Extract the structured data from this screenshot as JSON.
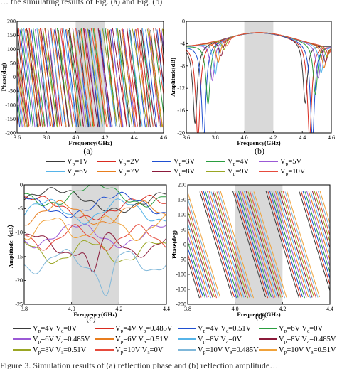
{
  "header_text": "… the  simulating  results  of  Fig. (a) and Fig. (b)",
  "footer_text": "Figure 3. Simulation results of (a) reflection phase and (b) reflection amplitude…",
  "chart_data": [
    {
      "type": "line",
      "panel": "(a)",
      "xlabel": "Frequency(GHz)",
      "ylabel": "Phase(deg)",
      "xlim": [
        3.6,
        4.6
      ],
      "ylim": [
        -200,
        200
      ],
      "xticks": [
        "3.6",
        "3.8",
        "4.0",
        "4.2",
        "4.4",
        "4.6"
      ],
      "yticks": [
        "200",
        "150",
        "100",
        "50",
        "0",
        "-50",
        "-100",
        "-150",
        "-200"
      ],
      "shaded_band": [
        4.0,
        4.2
      ],
      "grid": false,
      "series": [
        {
          "name": "Vp=1V",
          "color": "#3a3a3a",
          "period": 0.07,
          "offset": 0.0
        },
        {
          "name": "Vp=2V",
          "color": "#d92b1f",
          "period": 0.074,
          "offset": 0.009
        },
        {
          "name": "Vp=3V",
          "color": "#1f4fd1",
          "period": 0.078,
          "offset": 0.018
        },
        {
          "name": "Vp=4V",
          "color": "#2a9d3f",
          "period": 0.082,
          "offset": 0.027
        },
        {
          "name": "Vp=5V",
          "color": "#9b59d6",
          "period": 0.086,
          "offset": 0.036
        },
        {
          "name": "Vp=6V",
          "color": "#56b4e9",
          "period": 0.09,
          "offset": 0.045
        },
        {
          "name": "Vp=7V",
          "color": "#e87d1e",
          "period": 0.094,
          "offset": 0.054
        },
        {
          "name": "Vp=8V",
          "color": "#8b1a3a",
          "period": 0.098,
          "offset": 0.063
        },
        {
          "name": "Vp=9V",
          "color": "#9aa623",
          "period": 0.102,
          "offset": 0.072
        },
        {
          "name": "Vp=10V",
          "color": "#e64a3c",
          "period": 0.106,
          "offset": 0.081
        }
      ]
    },
    {
      "type": "line",
      "panel": "(b)",
      "xlabel": "Frequency(GHz)",
      "ylabel": "Amplitude(dB)",
      "xlim": [
        3.6,
        4.6
      ],
      "ylim": [
        -20,
        0
      ],
      "xticks": [
        "3.6",
        "3.8",
        "4.0",
        "4.2",
        "4.4",
        "4.6"
      ],
      "yticks": [
        "0",
        "-4",
        "-8",
        "-12",
        "-16",
        "-20"
      ],
      "shaded_band": [
        4.0,
        4.2
      ],
      "grid": false,
      "series": [
        {
          "name": "Vp=1V",
          "color": "#3a3a3a",
          "dips": [
            [
              3.66,
              -17
            ],
            [
              4.42,
              -14
            ]
          ]
        },
        {
          "name": "Vp=2V",
          "color": "#d92b1f",
          "dips": [
            [
              3.68,
              -20
            ],
            [
              4.45,
              -20
            ]
          ]
        },
        {
          "name": "Vp=3V",
          "color": "#1f4fd1",
          "dips": [
            [
              3.72,
              -20
            ],
            [
              4.47,
              -20
            ]
          ]
        },
        {
          "name": "Vp=4V",
          "color": "#2a9d3f",
          "dips": [
            [
              3.75,
              -14
            ],
            [
              4.49,
              -12
            ]
          ]
        },
        {
          "name": "Vp=5V",
          "color": "#9b59d6",
          "dips": [
            [
              3.78,
              -10
            ],
            [
              4.51,
              -9
            ]
          ]
        },
        {
          "name": "Vp=6V",
          "color": "#56b4e9",
          "dips": [
            [
              3.8,
              -9
            ],
            [
              4.53,
              -8
            ]
          ]
        },
        {
          "name": "Vp=7V",
          "color": "#e87d1e",
          "dips": [
            [
              3.82,
              -7
            ],
            [
              4.55,
              -7
            ]
          ]
        },
        {
          "name": "Vp=8V",
          "color": "#8b1a3a",
          "dips": [
            [
              3.84,
              -6
            ],
            [
              4.56,
              -6
            ]
          ]
        },
        {
          "name": "Vp=9V",
          "color": "#9aa623",
          "dips": [
            [
              3.86,
              -5
            ],
            [
              4.57,
              -5
            ]
          ]
        },
        {
          "name": "Vp=10V",
          "color": "#e64a3c",
          "dips": [
            [
              3.88,
              -4.5
            ],
            [
              4.58,
              -4.5
            ]
          ]
        }
      ]
    },
    {
      "type": "line",
      "panel": "(c)",
      "xlabel": "Frequency(GHz)",
      "ylabel": "Amplitude（dB）",
      "xlim": [
        3.8,
        4.4
      ],
      "ylim": [
        -25,
        0
      ],
      "xticks": [
        "3.8",
        "4.0",
        "4.2",
        "4.4"
      ],
      "yticks": [
        "0",
        "-5",
        "-10",
        "-15",
        "-20",
        "-25"
      ],
      "shaded_band": [
        4.0,
        4.2
      ],
      "grid": false,
      "series": [
        {
          "name": "Vp=4V Va=0V",
          "color": "#3a3a3a",
          "base": -3.2
        },
        {
          "name": "Vp=4V Va=0.485V",
          "color": "#d92b1f",
          "base": -4.8
        },
        {
          "name": "Vp=4V Va=0.51V",
          "color": "#1f4fd1",
          "base": -4.2
        },
        {
          "name": "Vp=6V Va=0V",
          "color": "#2a9d3f",
          "base": -2.0
        },
        {
          "name": "Vp=6V Va=0.485V",
          "color": "#9b59d6",
          "base": -10.5
        },
        {
          "name": "Vp=6V Va=0.51V",
          "color": "#e87d1e",
          "base": -6.0
        },
        {
          "name": "Vp=8V Va=0V",
          "color": "#56b4e9",
          "base": -5.5
        },
        {
          "name": "Vp=8V Va=0.485V",
          "color": "#8b1a3a",
          "base": -12.5
        },
        {
          "name": "Vp=8V Va=0.51V",
          "color": "#9aa623",
          "base": -14.0
        },
        {
          "name": "Vp=10V Va=0V",
          "color": "#e64a3c",
          "base": -11.0
        },
        {
          "name": "Vp=10V Va=0.485V",
          "color": "#7fb7d9",
          "base": -16.0
        },
        {
          "name": "Vp=10V Va=0.51V",
          "color": "#f0a23a",
          "base": -9.0
        }
      ]
    },
    {
      "type": "line",
      "panel": "(d)",
      "xlabel": "Frequency(GHz)",
      "ylabel": "Phase(deg)",
      "xlim": [
        3.8,
        4.4
      ],
      "ylim": [
        -200,
        200
      ],
      "xticks": [
        "3.8",
        "4.0",
        "4.2",
        "4.4"
      ],
      "yticks": [
        "200",
        "150",
        "100",
        "50",
        "0",
        "-50",
        "-100",
        "-150",
        "-200"
      ],
      "shaded_band": [
        4.0,
        4.2
      ],
      "grid": false,
      "series": [
        {
          "name": "Vp=4V Va=0V",
          "color": "#3a3a3a",
          "offset": 0.0
        },
        {
          "name": "Vp=4V Va=0.485V",
          "color": "#d92b1f",
          "offset": 0.008
        },
        {
          "name": "Vp=4V Va=0.51V",
          "color": "#1f4fd1",
          "offset": 0.016
        },
        {
          "name": "Vp=6V Va=0V",
          "color": "#2a9d3f",
          "offset": 0.024
        },
        {
          "name": "Vp=6V Va=0.485V",
          "color": "#9b59d6",
          "offset": 0.032
        },
        {
          "name": "Vp=6V Va=0.51V",
          "color": "#e87d1e",
          "offset": 0.04
        },
        {
          "name": "Vp=8V Va=0V",
          "color": "#56b4e9",
          "offset": 0.048
        },
        {
          "name": "Vp=8V Va=0.485V",
          "color": "#8b1a3a",
          "offset": 0.056
        },
        {
          "name": "Vp=8V Va=0.51V",
          "color": "#9aa623",
          "offset": 0.064
        },
        {
          "name": "Vp=10V Va=0V",
          "color": "#e64a3c",
          "offset": 0.072
        },
        {
          "name": "Vp=10V Va=0.485V",
          "color": "#7fb7d9",
          "offset": 0.08
        },
        {
          "name": "Vp=10V Va=0.51V",
          "color": "#f0a23a",
          "offset": 0.088
        }
      ]
    }
  ]
}
